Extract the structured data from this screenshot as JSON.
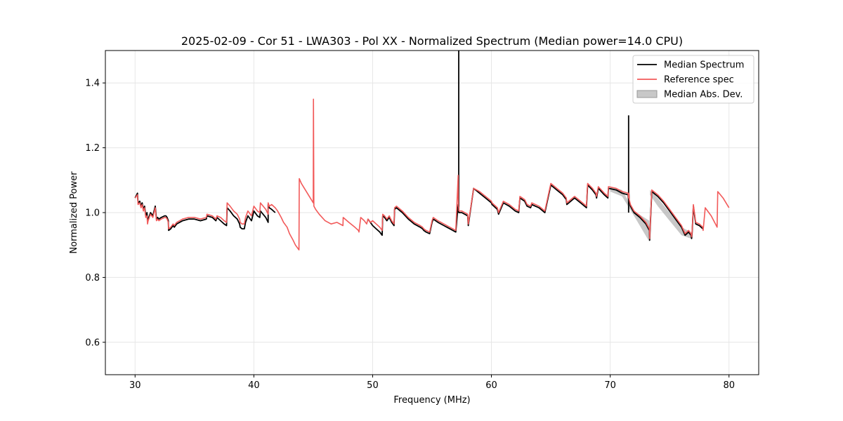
{
  "chart_data": {
    "type": "line",
    "title": "2025-02-09 - Cor 51 - LWA303 - Pol XX - Normalized Spectrum (Median power=14.0 CPU)",
    "xlabel": "Frequency (MHz)",
    "ylabel": "Normalized Power",
    "xlim": [
      27.5,
      82.5
    ],
    "ylim": [
      0.5,
      1.5
    ],
    "xticks": [
      30,
      40,
      50,
      60,
      70,
      80
    ],
    "yticks": [
      0.6,
      0.8,
      1.0,
      1.2,
      1.4
    ],
    "xtick_labels": [
      "30",
      "40",
      "50",
      "60",
      "70",
      "80"
    ],
    "ytick_labels": [
      "0.6",
      "0.8",
      "1.0",
      "1.2",
      "1.4"
    ],
    "grid": true,
    "legend_position": "top-right",
    "colors": {
      "median": "#000000",
      "reference": "#f25a5a",
      "mad_fill": "#b0b0b0",
      "grid": "#e6e6e6"
    },
    "series": [
      {
        "name": "Median Spectrum",
        "x": [
          30.0,
          30.2,
          30.25,
          30.4,
          30.5,
          30.6,
          30.7,
          30.8,
          30.9,
          31.0,
          31.05,
          31.1,
          31.2,
          31.3,
          31.5,
          31.7,
          31.8,
          31.9,
          32.0,
          32.2,
          32.5,
          32.6,
          32.7,
          32.8,
          32.82,
          33.0,
          33.2,
          33.3,
          33.5,
          34.0,
          34.5,
          35.0,
          35.5,
          36.0,
          36.05,
          36.5,
          36.8,
          36.9,
          37.2,
          37.5,
          37.7,
          37.75,
          38.0,
          38.3,
          38.6,
          38.8,
          38.85,
          39.0,
          39.2,
          39.3,
          39.5,
          39.8,
          40.0,
          40.3,
          40.5,
          40.55,
          41.0,
          41.2,
          41.2,
          41.3,
          41.5,
          41.8
        ],
        "values": [
          1.045,
          1.06,
          1.03,
          1.035,
          1.02,
          1.03,
          1.01,
          1.02,
          0.99,
          1.0,
          0.975,
          0.98,
          0.99,
          1.0,
          0.99,
          1.02,
          0.98,
          0.985,
          0.98,
          0.985,
          0.99,
          0.99,
          0.985,
          0.975,
          0.945,
          0.95,
          0.96,
          0.955,
          0.965,
          0.975,
          0.98,
          0.98,
          0.975,
          0.98,
          0.99,
          0.985,
          0.975,
          0.985,
          0.975,
          0.965,
          0.96,
          1.015,
          1.005,
          0.99,
          0.98,
          0.965,
          0.955,
          0.95,
          0.95,
          0.97,
          0.99,
          0.975,
          1.005,
          0.99,
          0.985,
          1.005,
          0.985,
          0.97,
          1.025,
          1.015,
          1.01,
          1.0
        ]
      },
      {
        "name": "Median Spectrum",
        "x": [
          49.6,
          50.0,
          50.3,
          50.6,
          50.8,
          50.85,
          51.0,
          51.2,
          51.4,
          51.6,
          51.8,
          51.85,
          52.0,
          52.5,
          53.0,
          53.5,
          54.0,
          54.2,
          54.3,
          54.5,
          54.8,
          55.0,
          55.1,
          55.5,
          56.0,
          56.5,
          57.0,
          57.2,
          57.22,
          57.24,
          57.26,
          57.3,
          57.5,
          58.0,
          58.05,
          58.5,
          59.0,
          59.5,
          60.0,
          60.05,
          60.5,
          60.6,
          61.0,
          61.5,
          62.0,
          62.3,
          62.4,
          62.6,
          62.8,
          63.0,
          63.3,
          63.4,
          64.0,
          64.5,
          65.0,
          65.5,
          66.0,
          66.3,
          66.35,
          67.0,
          67.5,
          68.0,
          68.1,
          68.5,
          68.8,
          68.85,
          69.0,
          69.5,
          69.8,
          69.85,
          70.5,
          71.0,
          71.5,
          71.55,
          71.57,
          71.6,
          71.7,
          72.0,
          72.5,
          73.0,
          73.3,
          73.32,
          73.5,
          74.0,
          74.5,
          75.0,
          75.5,
          76.0,
          76.3,
          76.6,
          76.8,
          76.85,
          76.87,
          76.9,
          77.0,
          77.2,
          77.5,
          77.8
        ],
        "values": [
          0.98,
          0.96,
          0.95,
          0.94,
          0.93,
          0.99,
          0.985,
          0.975,
          0.985,
          0.97,
          0.96,
          1.01,
          1.015,
          1.0,
          0.98,
          0.965,
          0.955,
          0.95,
          0.945,
          0.94,
          0.935,
          0.97,
          0.98,
          0.97,
          0.96,
          0.95,
          0.94,
          1.025,
          1.015,
          1.01,
          1.0,
          1.0,
          1.0,
          0.99,
          0.96,
          1.075,
          1.06,
          1.045,
          1.03,
          1.025,
          1.01,
          0.995,
          1.03,
          1.02,
          1.005,
          1.0,
          1.045,
          1.04,
          1.035,
          1.02,
          1.015,
          1.025,
          1.015,
          1.0,
          1.085,
          1.07,
          1.055,
          1.04,
          1.025,
          1.045,
          1.03,
          1.015,
          1.085,
          1.07,
          1.055,
          1.045,
          1.075,
          1.055,
          1.045,
          1.075,
          1.07,
          1.06,
          1.055,
          1.04,
          1.06,
          1.035,
          1.02,
          1.0,
          0.985,
          0.965,
          0.945,
          0.915,
          1.065,
          1.05,
          1.03,
          1.005,
          0.98,
          0.955,
          0.93,
          0.94,
          0.93,
          0.92,
          0.925,
          0.94,
          1.02,
          0.965,
          0.96,
          0.95
        ]
      },
      {
        "name": "Reference spec",
        "x": [
          30.0,
          30.2,
          30.25,
          30.4,
          30.5,
          30.6,
          30.7,
          30.8,
          30.9,
          31.0,
          31.05,
          31.1,
          31.2,
          31.3,
          31.5,
          31.7,
          31.8,
          31.9,
          32.0,
          32.2,
          32.5,
          32.6,
          32.7,
          32.8,
          32.82,
          33.0,
          33.2,
          33.3,
          33.5,
          34.0,
          34.5,
          35.0,
          35.5,
          36.0,
          36.05,
          36.5,
          36.8,
          36.9,
          37.2,
          37.5,
          37.7,
          37.75,
          38.0,
          38.3,
          38.6,
          38.8,
          38.85,
          39.0,
          39.2,
          39.3,
          39.5,
          39.8,
          40.0,
          40.3,
          40.5,
          40.55,
          41.0,
          41.2,
          41.2,
          41.3,
          41.5,
          41.8,
          42.0,
          42.3,
          42.5,
          42.8,
          43.0,
          43.3,
          43.5,
          43.8,
          43.82,
          44.0,
          44.5,
          45.0,
          45.02,
          45.05,
          45.2,
          45.5,
          46.0,
          46.5,
          47.0,
          47.5,
          47.52,
          48.0,
          48.5,
          48.8,
          48.85,
          49.0,
          49.3,
          49.5,
          49.6,
          49.8,
          50.0,
          50.3,
          50.6,
          50.8,
          50.85,
          51.0,
          51.2,
          51.4,
          51.6,
          51.8,
          51.85,
          52.0,
          52.5,
          53.0,
          53.5,
          54.0,
          54.2,
          54.3,
          54.5,
          54.8,
          55.0,
          55.1,
          55.5,
          56.0,
          56.5,
          57.0,
          57.2,
          57.22,
          57.24,
          57.26,
          57.3,
          57.5,
          58.0,
          58.05,
          58.5,
          59.0,
          59.5,
          60.0,
          60.05,
          60.5,
          60.6,
          61.0,
          61.5,
          62.0,
          62.3,
          62.4,
          62.6,
          62.8,
          63.0,
          63.3,
          63.4,
          64.0,
          64.5,
          65.0,
          65.5,
          66.0,
          66.3,
          66.35,
          67.0,
          67.5,
          68.0,
          68.1,
          68.5,
          68.8,
          68.85,
          69.0,
          69.5,
          69.8,
          69.85,
          70.5,
          71.0,
          71.5,
          71.55,
          71.57,
          71.6,
          71.7,
          72.0,
          72.5,
          73.0,
          73.3,
          73.32,
          73.5,
          74.0,
          74.5,
          75.0,
          75.5,
          76.0,
          76.3,
          76.6,
          76.8,
          76.85,
          76.87,
          76.9,
          77.0,
          77.2,
          77.5,
          77.8,
          77.82,
          78.0,
          78.5,
          79.0,
          79.05,
          79.5,
          80.0
        ],
        "values": [
          1.045,
          1.055,
          1.025,
          1.03,
          1.015,
          1.025,
          1.005,
          1.015,
          0.985,
          0.99,
          0.965,
          0.975,
          0.985,
          0.995,
          0.985,
          1.015,
          0.975,
          0.98,
          0.975,
          0.98,
          0.985,
          0.985,
          0.98,
          0.97,
          0.95,
          0.955,
          0.965,
          0.96,
          0.97,
          0.98,
          0.985,
          0.985,
          0.98,
          0.985,
          0.995,
          0.99,
          0.98,
          0.99,
          0.985,
          0.975,
          0.97,
          1.03,
          1.02,
          1.005,
          0.995,
          0.98,
          0.97,
          0.965,
          0.965,
          0.985,
          1.005,
          0.99,
          1.02,
          1.005,
          1.0,
          1.03,
          1.01,
          0.995,
          1.03,
          1.02,
          1.025,
          1.015,
          1.005,
          0.985,
          0.97,
          0.955,
          0.935,
          0.915,
          0.9,
          0.885,
          1.105,
          1.09,
          1.06,
          1.03,
          1.35,
          1.02,
          1.01,
          0.995,
          0.975,
          0.965,
          0.97,
          0.96,
          0.985,
          0.97,
          0.955,
          0.945,
          0.94,
          0.985,
          0.975,
          0.965,
          0.98,
          0.97,
          0.975,
          0.965,
          0.955,
          0.945,
          0.995,
          0.99,
          0.98,
          0.99,
          0.975,
          0.965,
          1.015,
          1.02,
          1.005,
          0.985,
          0.97,
          0.96,
          0.955,
          0.95,
          0.945,
          0.94,
          0.975,
          0.985,
          0.975,
          0.965,
          0.955,
          0.945,
          1.115,
          1.02,
          1.015,
          1.005,
          1.005,
          1.005,
          0.995,
          0.965,
          1.075,
          1.065,
          1.05,
          1.035,
          1.03,
          1.015,
          1.0,
          1.035,
          1.025,
          1.01,
          1.005,
          1.05,
          1.045,
          1.04,
          1.025,
          1.02,
          1.03,
          1.02,
          1.005,
          1.09,
          1.075,
          1.06,
          1.045,
          1.03,
          1.05,
          1.035,
          1.02,
          1.09,
          1.075,
          1.06,
          1.05,
          1.08,
          1.06,
          1.05,
          1.08,
          1.075,
          1.065,
          1.06,
          1.045,
          1.06,
          1.04,
          1.025,
          1.005,
          0.99,
          0.97,
          0.95,
          0.92,
          1.07,
          1.055,
          1.035,
          1.01,
          0.985,
          0.96,
          0.935,
          0.945,
          0.935,
          0.925,
          0.93,
          0.945,
          1.025,
          0.97,
          0.965,
          0.955,
          0.945,
          1.015,
          0.99,
          0.955,
          1.065,
          1.045,
          1.015
        ]
      },
      {
        "name": "Median Spectrum",
        "x": [
          57.25,
          57.25
        ],
        "values": [
          1.0,
          1.5
        ]
      },
      {
        "name": "Median Spectrum",
        "x": [
          71.55,
          71.55
        ],
        "values": [
          1.0,
          1.3
        ]
      }
    ],
    "legend": [
      {
        "label": "Median Spectrum",
        "kind": "line",
        "color_key": "median"
      },
      {
        "label": "Reference spec",
        "kind": "line",
        "color_key": "reference"
      },
      {
        "label": "Median Abs. Dev.",
        "kind": "patch",
        "color_key": "mad_fill"
      }
    ],
    "mad_band": {
      "x": [
        70.0,
        71.0,
        72.0,
        73.3,
        73.35,
        74.0,
        75.0,
        76.0,
        76.8
      ],
      "upper": [
        1.08,
        1.07,
        1.005,
        0.975,
        1.07,
        1.045,
        1.0,
        0.955,
        0.94
      ],
      "lower": [
        1.065,
        1.05,
        0.99,
        0.91,
        1.055,
        1.02,
        0.975,
        0.93,
        0.92
      ]
    }
  }
}
